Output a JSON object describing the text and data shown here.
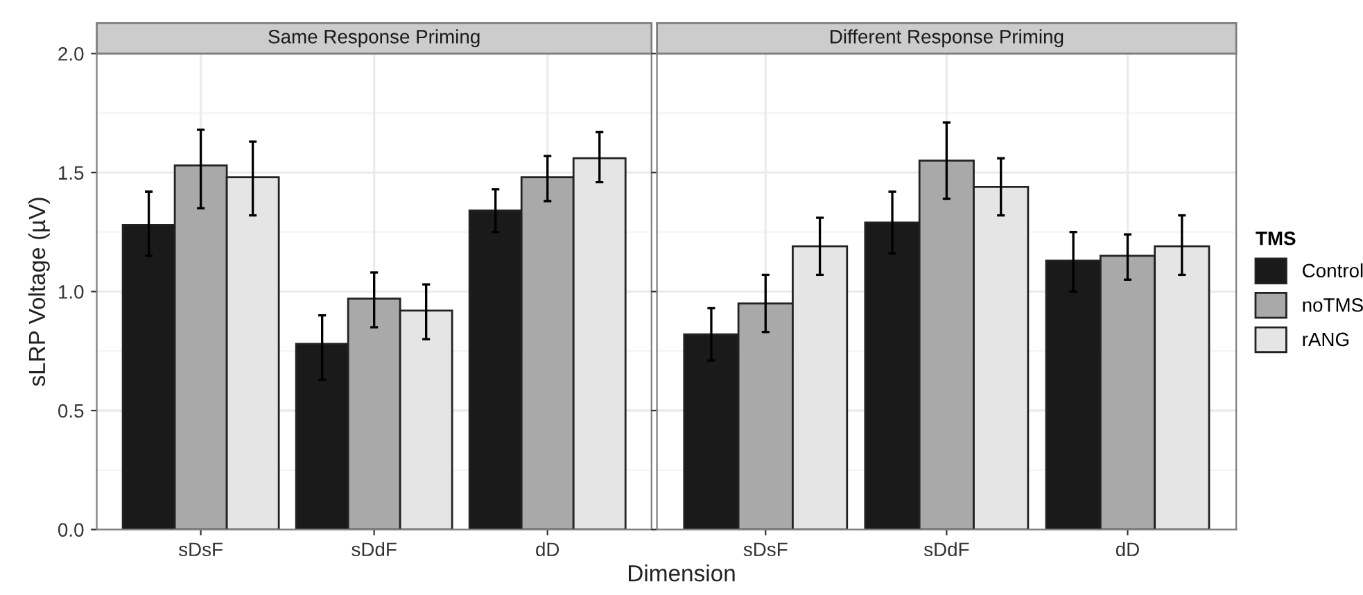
{
  "chart_data": [
    {
      "type": "bar",
      "title": "Same Response Priming",
      "xlabel": "Dimension",
      "ylabel": "sLRP Voltage (µV)",
      "categories": [
        "sDsF",
        "sDdF",
        "dD"
      ],
      "ylim": [
        0,
        2.0
      ],
      "yticks": [
        {
          "value": 0,
          "label": "0.0"
        },
        0.5,
        {
          "value": 1,
          "label": "1.0"
        },
        1.5,
        {
          "value": 2,
          "label": "2.0"
        }
      ],
      "grid": true,
      "series": [
        {
          "color": "#1a1a1a",
          "values": [
            1.28,
            0.78,
            1.34
          ],
          "errors": [
            [
              1.15,
              1.42
            ],
            [
              0.63,
              0.9
            ],
            [
              1.25,
              1.43
            ]
          ]
        },
        {
          "color": "#a9a9a9",
          "values": [
            1.53,
            0.97,
            1.48
          ],
          "errors": [
            [
              1.35,
              1.68
            ],
            [
              0.85,
              1.08
            ],
            [
              1.38,
              1.57
            ]
          ]
        },
        {
          "color": "#e5e5e5",
          "values": [
            1.48,
            0.92,
            1.56
          ],
          "errors": [
            [
              1.32,
              1.63
            ],
            [
              0.8,
              1.03
            ],
            [
              1.46,
              1.67
            ]
          ]
        }
      ]
    },
    {
      "type": "bar",
      "title": "Different Response Priming",
      "legend_title": "TMS",
      "categories": [
        "sDsF",
        "sDdF",
        "dD"
      ],
      "ylim": [
        0,
        2.0
      ],
      "yticks": [
        0,
        0.5,
        1,
        1.5,
        2
      ],
      "grid": true,
      "legend": "right",
      "tick_labels": "x",
      "series": [
        {
          "name": "Control",
          "color": "#1a1a1a",
          "values": [
            0.82,
            1.29,
            1.13
          ],
          "errors": [
            [
              0.71,
              0.93
            ],
            [
              1.16,
              1.42
            ],
            [
              1.0,
              1.25
            ]
          ]
        },
        {
          "name": "noTMS",
          "color": "#a9a9a9",
          "values": [
            0.95,
            1.55,
            1.15
          ],
          "errors": [
            [
              0.83,
              1.07
            ],
            [
              1.39,
              1.71
            ],
            [
              1.05,
              1.24
            ]
          ]
        },
        {
          "name": "rANG",
          "color": "#e5e5e5",
          "values": [
            1.19,
            1.44,
            1.19
          ],
          "errors": [
            [
              1.07,
              1.31
            ],
            [
              1.32,
              1.56
            ],
            [
              1.07,
              1.32
            ]
          ]
        }
      ]
    }
  ]
}
